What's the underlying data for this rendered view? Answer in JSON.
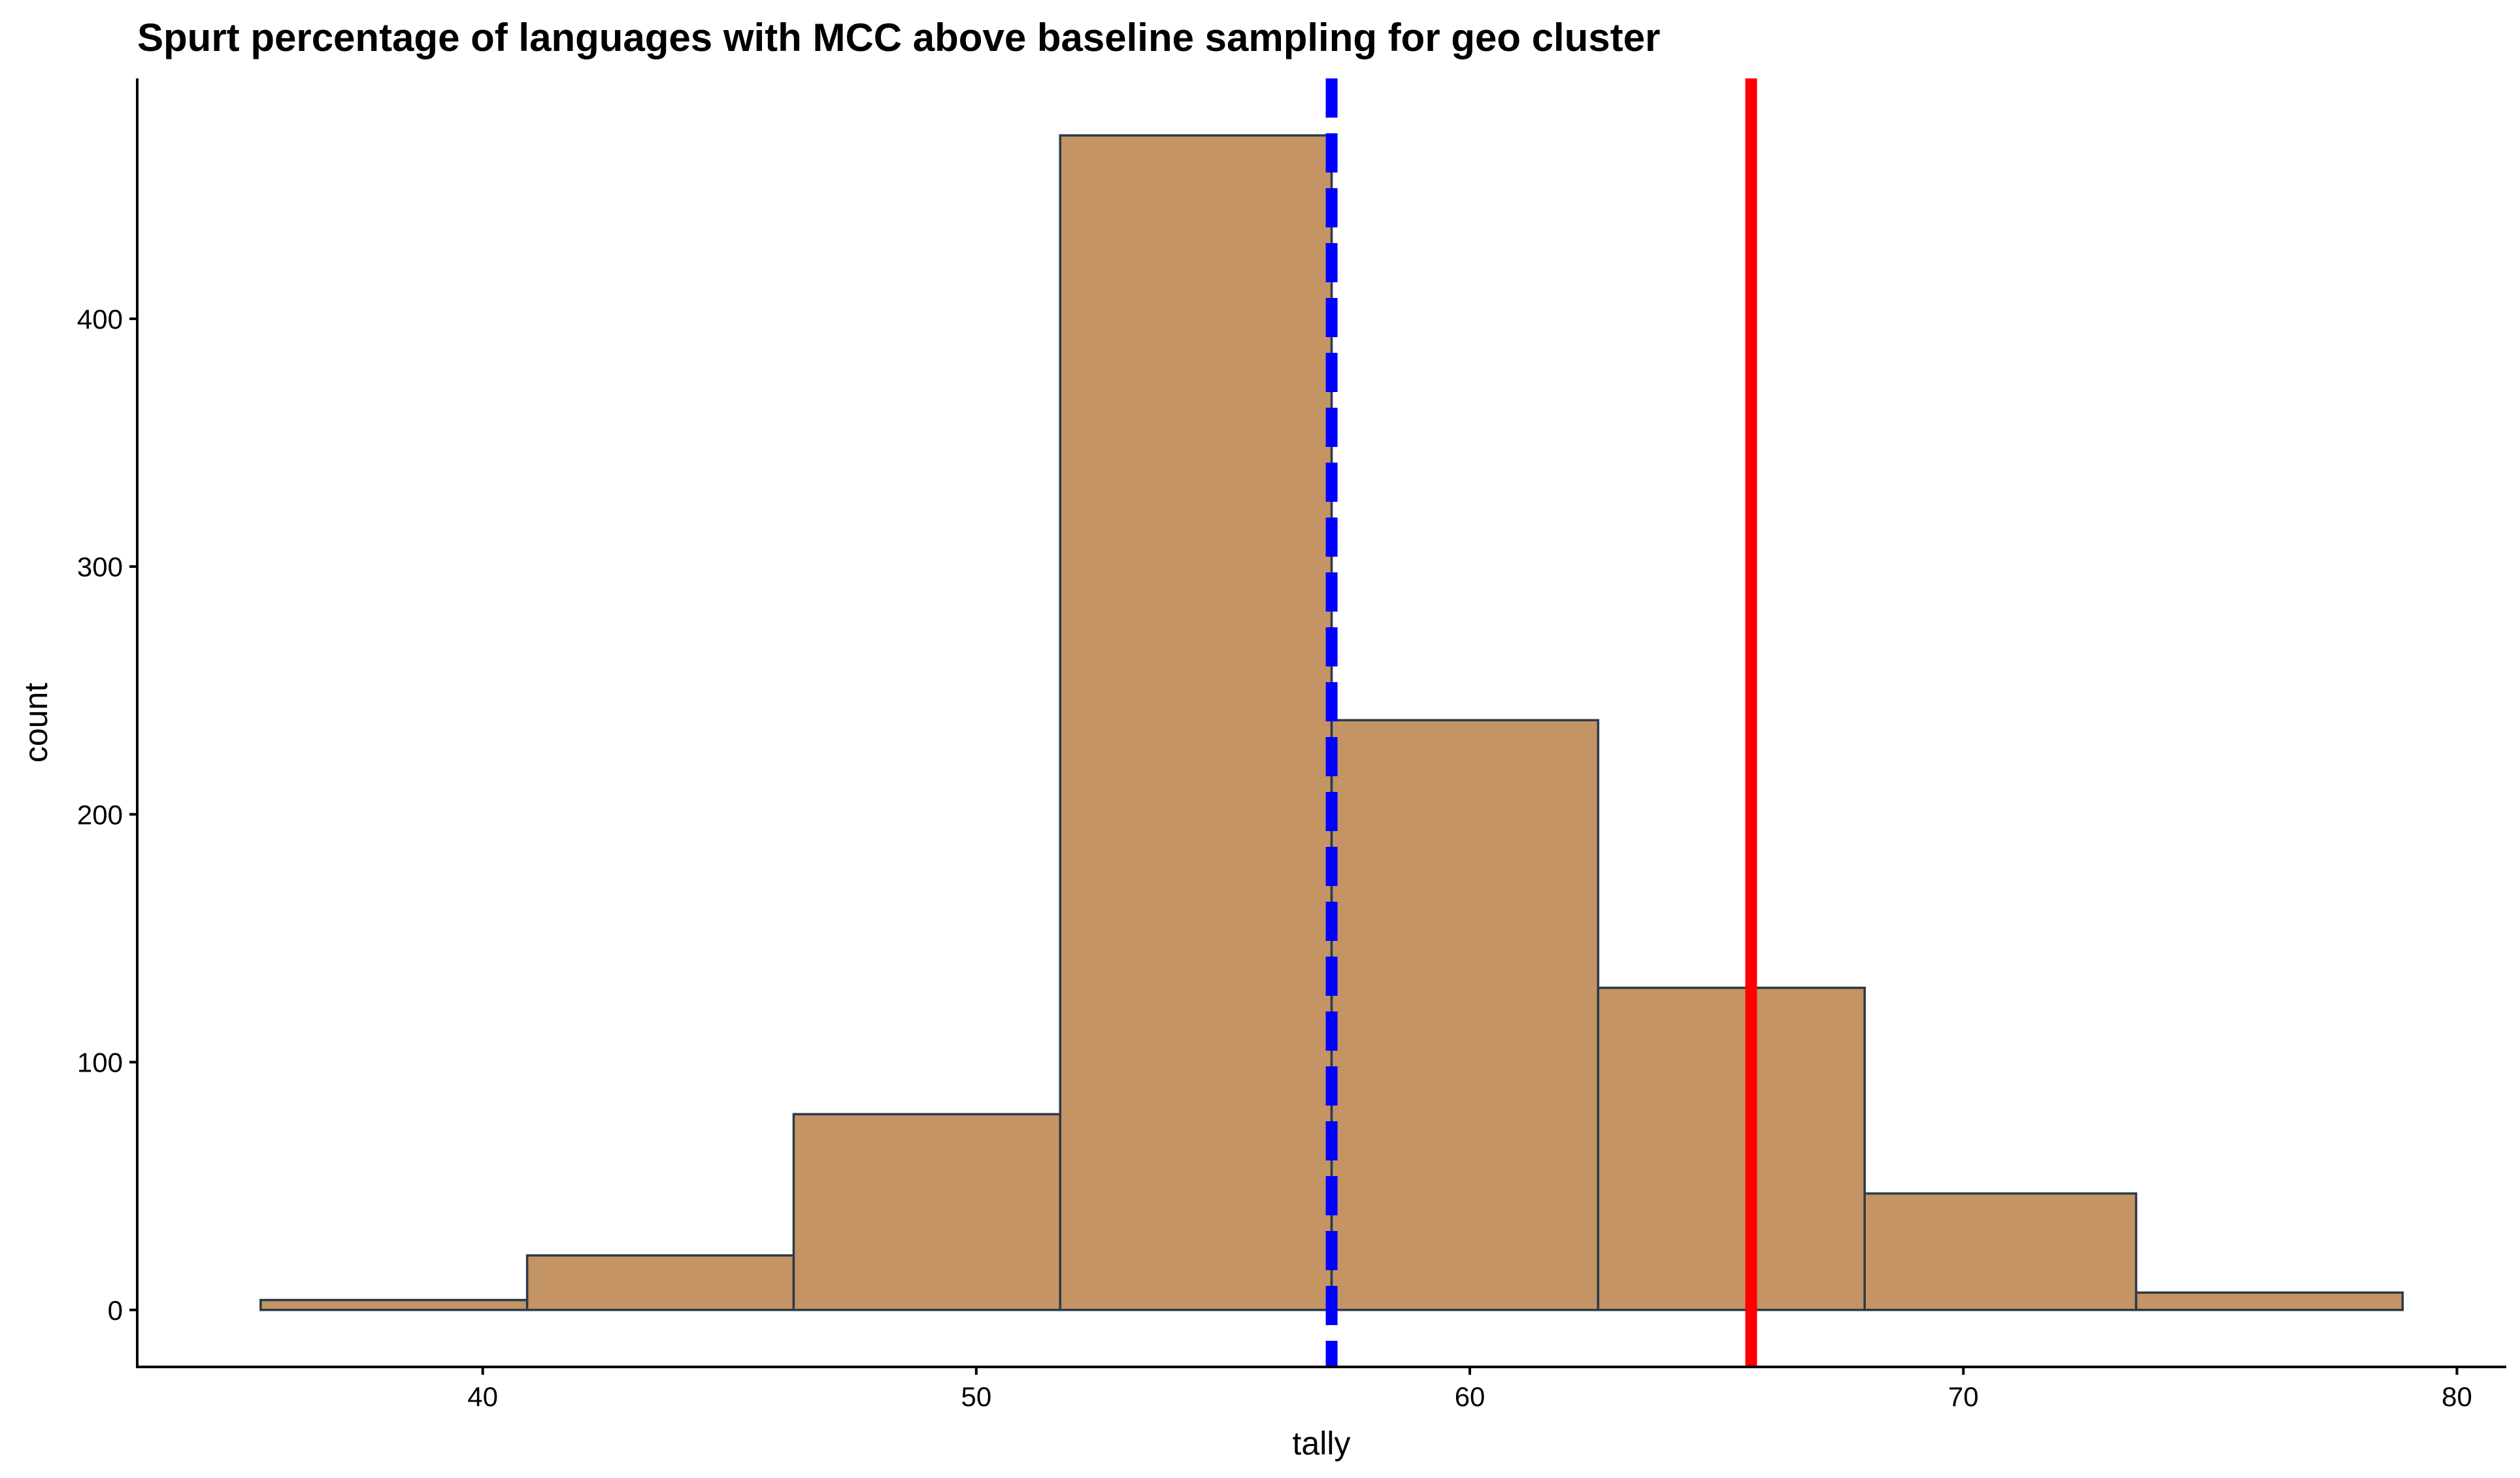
{
  "chart_data": {
    "type": "histogram",
    "title": "Spurt percentage of languages with MCC above baseline sampling for geo cluster",
    "xlabel": "tally",
    "ylabel": "count",
    "xlim": [
      33,
      81
    ],
    "ylim": [
      -23,
      497
    ],
    "x_ticks": [
      40,
      50,
      60,
      70,
      80
    ],
    "y_ticks": [
      0,
      100,
      200,
      300,
      400
    ],
    "bins": [
      {
        "x0": 35.5,
        "x1": 40.9,
        "count": 4
      },
      {
        "x0": 40.9,
        "x1": 46.3,
        "count": 22
      },
      {
        "x0": 46.3,
        "x1": 51.7,
        "count": 79
      },
      {
        "x0": 51.7,
        "x1": 57.2,
        "count": 474
      },
      {
        "x0": 57.2,
        "x1": 62.6,
        "count": 238
      },
      {
        "x0": 62.6,
        "x1": 68.0,
        "count": 130
      },
      {
        "x0": 68.0,
        "x1": 73.5,
        "count": 47
      },
      {
        "x0": 73.5,
        "x1": 78.9,
        "count": 7
      }
    ],
    "reference_lines": [
      {
        "x": 57.2,
        "color": "#0000ff",
        "style": "dashed"
      },
      {
        "x": 65.7,
        "color": "#ff0000",
        "style": "solid"
      }
    ],
    "bar_fill": "#c49464",
    "bar_stroke": "#2b3a4a",
    "grid": false,
    "legend": "none"
  }
}
